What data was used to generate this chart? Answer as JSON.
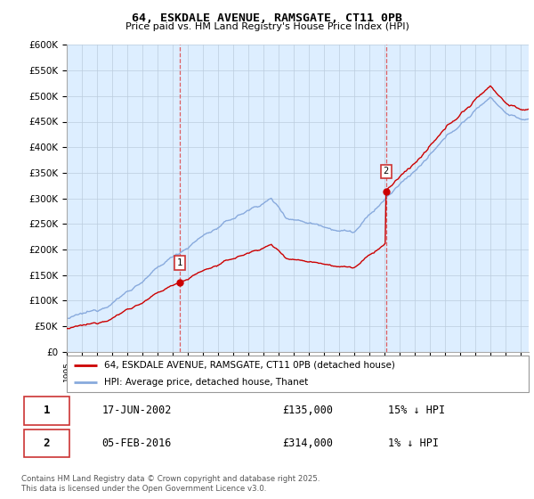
{
  "title": "64, ESKDALE AVENUE, RAMSGATE, CT11 0PB",
  "subtitle": "Price paid vs. HM Land Registry's House Price Index (HPI)",
  "ylabel_ticks": [
    "£0",
    "£50K",
    "£100K",
    "£150K",
    "£200K",
    "£250K",
    "£300K",
    "£350K",
    "£400K",
    "£450K",
    "£500K",
    "£550K",
    "£600K"
  ],
  "ylim": [
    0,
    600000
  ],
  "xlim_start": 1995.0,
  "xlim_end": 2025.5,
  "line1_color": "#cc0000",
  "line2_color": "#88aadd",
  "marker1_date": 2002.46,
  "marker1_price": 135000,
  "marker2_date": 2016.09,
  "marker2_price": 314000,
  "legend_line1": "64, ESKDALE AVENUE, RAMSGATE, CT11 0PB (detached house)",
  "legend_line2": "HPI: Average price, detached house, Thanet",
  "table_row1": [
    "1",
    "17-JUN-2002",
    "£135,000",
    "15% ↓ HPI"
  ],
  "table_row2": [
    "2",
    "05-FEB-2016",
    "£314,000",
    "1% ↓ HPI"
  ],
  "footer": "Contains HM Land Registry data © Crown copyright and database right 2025.\nThis data is licensed under the Open Government Licence v3.0.",
  "vline1_date": 2002.46,
  "vline2_date": 2016.09,
  "plot_bg": "#ddeeff",
  "grid_color": "#bbccdd"
}
